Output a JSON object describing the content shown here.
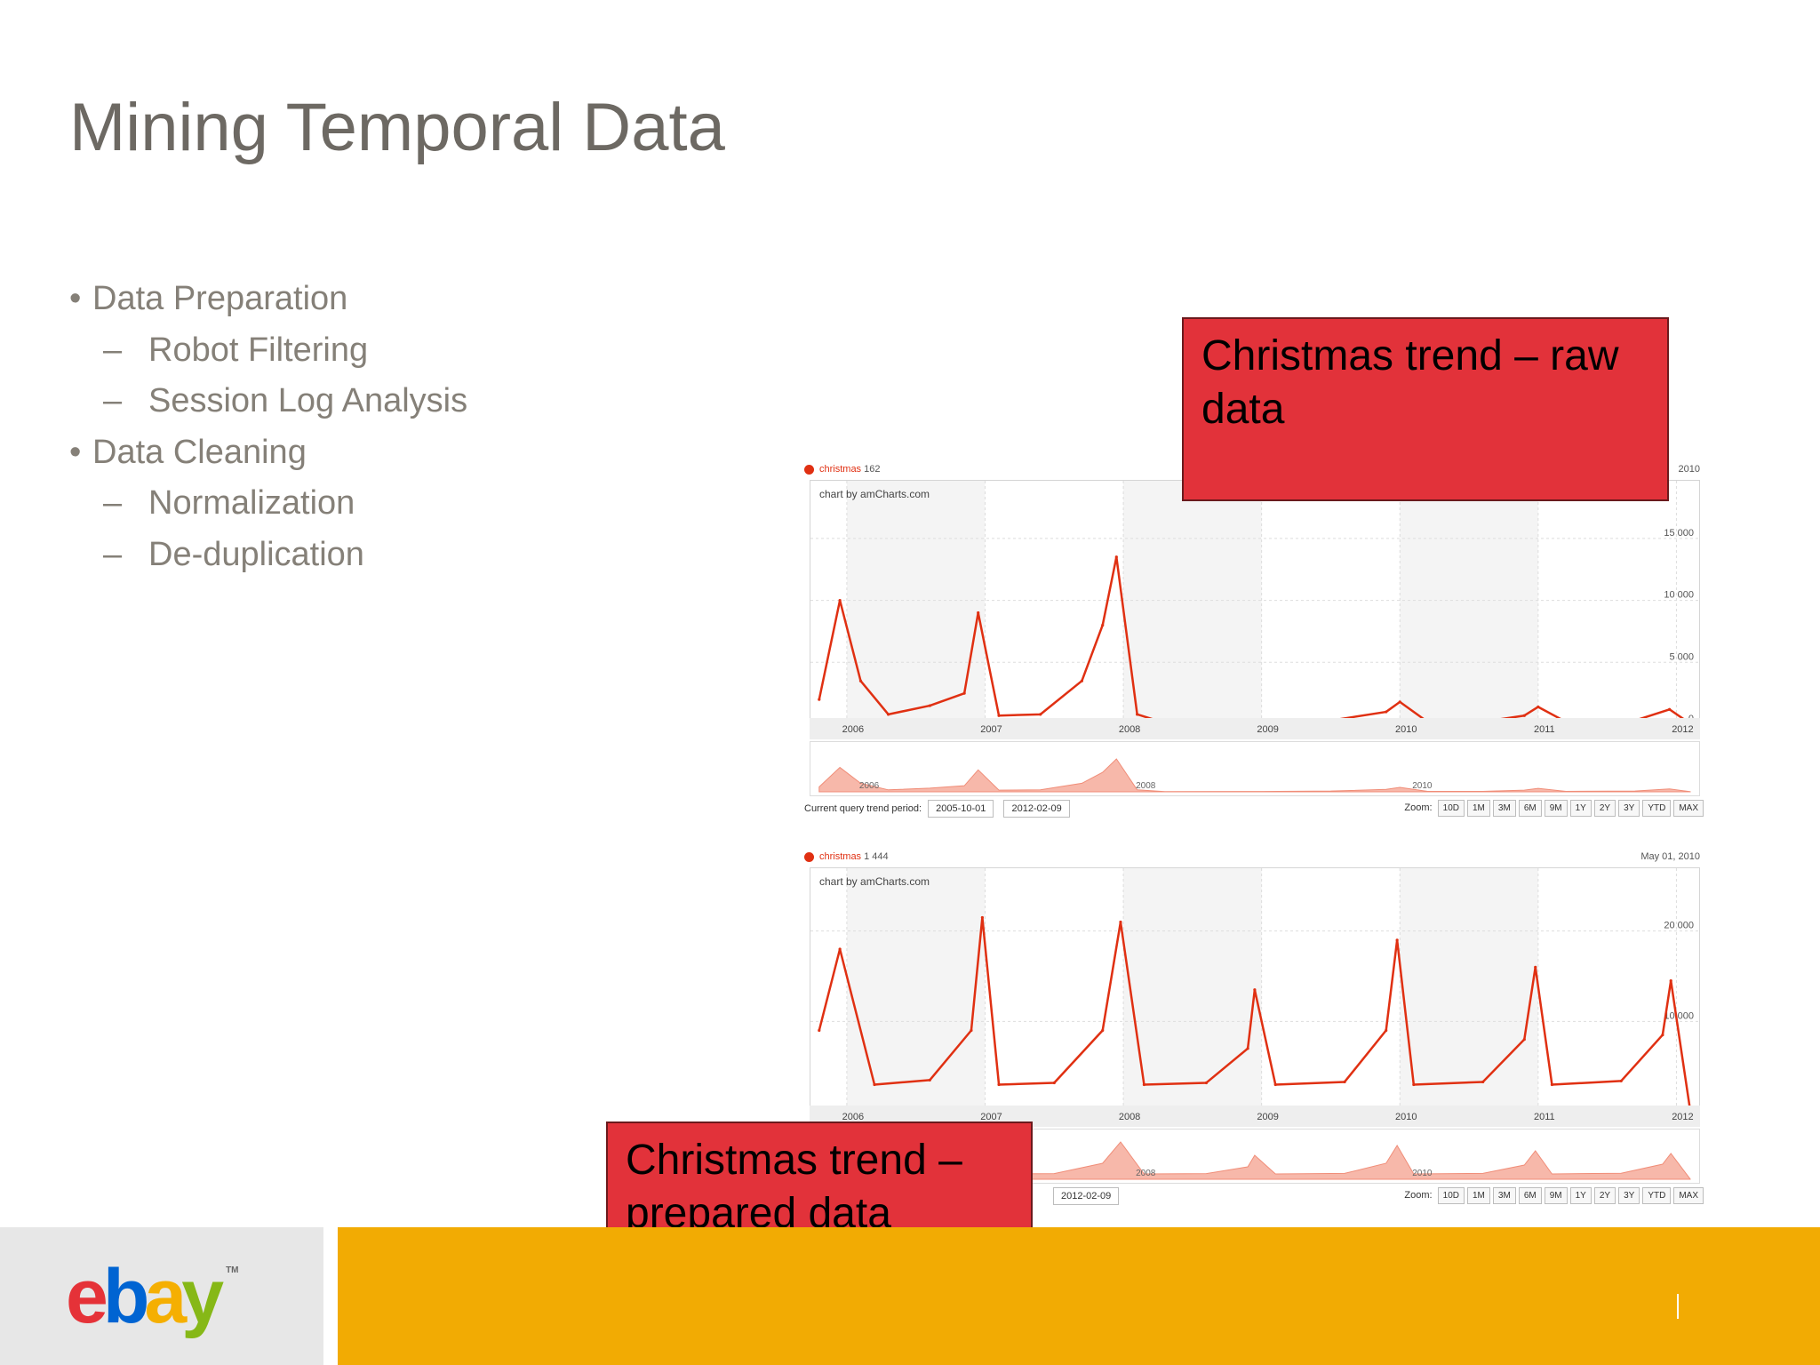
{
  "slide": {
    "title": "Mining Temporal Data",
    "bullets": [
      {
        "level": 1,
        "mark": "•",
        "text": "Data Preparation"
      },
      {
        "level": 2,
        "mark": "–",
        "text": "Robot Filtering"
      },
      {
        "level": 2,
        "mark": "–",
        "text": "Session Log Analysis"
      },
      {
        "level": 1,
        "mark": "•",
        "text": "Data Cleaning"
      },
      {
        "level": 2,
        "mark": "–",
        "text": "Normalization"
      },
      {
        "level": 2,
        "mark": "–",
        "text": "De-duplication"
      }
    ]
  },
  "callouts": {
    "raw": "Christmas trend – raw data",
    "prepared": "Christmas trend – prepared data"
  },
  "chart_raw": {
    "series_name": "christmas",
    "series_value": "162",
    "date_readout": "2010",
    "credit": "chart by amCharts.com",
    "period_label": "Current query trend period:",
    "period_start": "2005-10-01",
    "period_end": "2012-02-09",
    "zoom_label": "Zoom:"
  },
  "chart_prepared": {
    "series_name": "christmas",
    "series_value": "1 444",
    "date_readout": "May 01, 2010",
    "credit": "chart by amCharts.com",
    "period_end": "2012-02-09",
    "zoom_label": "Zoom:"
  },
  "zoom_options": [
    "10D",
    "1M",
    "3M",
    "6M",
    "9M",
    "1Y",
    "2Y",
    "3Y",
    "YTD",
    "MAX"
  ],
  "chart_data": [
    {
      "type": "line",
      "series": [
        {
          "name": "christmas",
          "color": "#e03012"
        }
      ],
      "x": [
        2005.8,
        2005.95,
        2006.1,
        2006.3,
        2006.6,
        2006.85,
        2006.95,
        2007.1,
        2007.4,
        2007.7,
        2007.85,
        2007.95,
        2008.1,
        2008.3,
        2009.0,
        2009.5,
        2009.9,
        2010.0,
        2010.2,
        2010.6,
        2010.9,
        2011.0,
        2011.2,
        2011.7,
        2011.95,
        2012.1
      ],
      "y": [
        2000,
        10000,
        3500,
        800,
        1500,
        2500,
        9000,
        700,
        800,
        3500,
        8000,
        13500,
        800,
        100,
        150,
        300,
        1000,
        1800,
        200,
        200,
        700,
        1400,
        200,
        300,
        1200,
        50
      ],
      "xlim": [
        2005.75,
        2012.1
      ],
      "ylim": [
        0,
        17500
      ],
      "ytick_labels": [
        "0",
        "5 000",
        "10 000",
        "15 000"
      ],
      "ytick_values": [
        0,
        5000,
        10000,
        15000
      ],
      "xtick_labels": [
        "2006",
        "2007",
        "2008",
        "2009",
        "2010",
        "2011",
        "2012"
      ],
      "xtick_values": [
        2006,
        2007,
        2008,
        2009,
        2010,
        2011,
        2012
      ],
      "navigator_labels": [
        "2006",
        "2008",
        "2010"
      ],
      "grid": true
    },
    {
      "type": "line",
      "series": [
        {
          "name": "christmas",
          "color": "#e03012"
        }
      ],
      "x": [
        2005.8,
        2005.95,
        2006.2,
        2006.6,
        2006.9,
        2006.98,
        2007.1,
        2007.5,
        2007.85,
        2007.98,
        2008.15,
        2008.6,
        2008.9,
        2008.95,
        2009.1,
        2009.6,
        2009.9,
        2009.98,
        2010.1,
        2010.6,
        2010.9,
        2010.98,
        2011.1,
        2011.6,
        2011.9,
        2011.96,
        2012.1
      ],
      "y": [
        9000,
        18000,
        3000,
        3500,
        9000,
        21500,
        3000,
        3200,
        9000,
        21000,
        3000,
        3200,
        7000,
        13500,
        3000,
        3300,
        9000,
        19000,
        3000,
        3300,
        8000,
        16000,
        3000,
        3400,
        8500,
        14500,
        100
      ],
      "xlim": [
        2005.75,
        2012.1
      ],
      "ylim": [
        0,
        24000
      ],
      "ytick_labels": [
        "10 000",
        "20 000"
      ],
      "ytick_values": [
        10000,
        20000
      ],
      "xtick_labels": [
        "2006",
        "2007",
        "2008",
        "2009",
        "2010",
        "2011",
        "2012"
      ],
      "xtick_values": [
        2006,
        2007,
        2008,
        2009,
        2010,
        2011,
        2012
      ],
      "navigator_labels": [
        "2008",
        "2010"
      ],
      "grid": true
    }
  ],
  "footer": {
    "logo_letters": [
      "e",
      "b",
      "a",
      "y"
    ],
    "logo_tm": "TM"
  }
}
